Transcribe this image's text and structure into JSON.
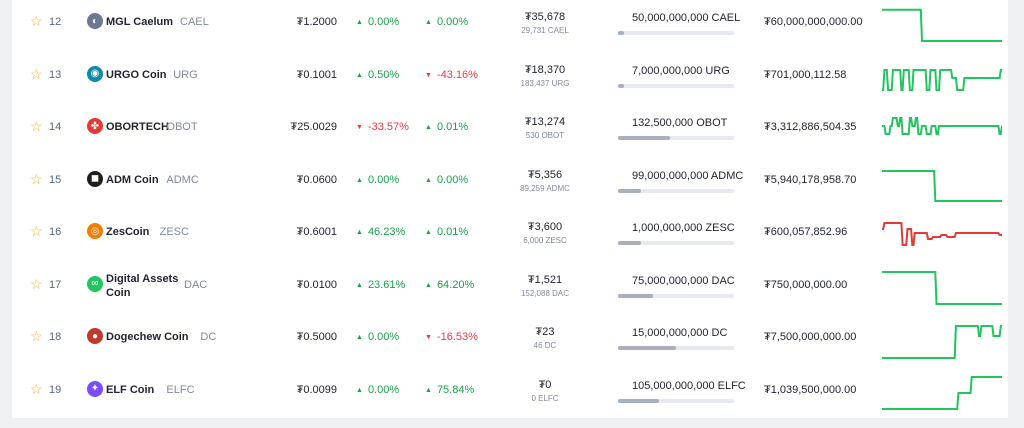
{
  "currency_symbol": "₮",
  "rows": [
    {
      "rank": "12",
      "name": "MGL Caelum",
      "symbol": "CAEL",
      "price": "₮1.2000",
      "change1": "0.00%",
      "dir1": "up",
      "change2": "0.00%",
      "dir2": "up",
      "volume": "₮35,678",
      "volume_sub": "29,731 CAEL",
      "supply": "50,000,000,000 CAEL",
      "supply_fill": 0.05,
      "market_cap": "₮60,000,000,000.00",
      "logo_icon": "mgl-caelum-logo-icon",
      "logo_color": "#6b7a8f",
      "spark_color": "#22c55e",
      "spark": [
        12,
        12,
        12,
        12,
        12,
        12,
        12,
        12,
        12,
        12,
        12,
        12,
        12,
        12,
        12,
        12,
        12,
        12,
        12,
        12,
        12,
        12,
        12,
        12,
        12,
        12,
        12,
        12,
        12,
        12,
        12,
        12,
        12,
        90,
        90,
        90,
        90,
        90,
        90,
        90,
        90,
        90,
        90,
        90,
        90,
        90,
        90,
        90,
        90,
        90,
        90,
        90,
        90,
        90,
        90,
        90,
        90,
        90,
        90,
        90,
        90,
        90,
        90,
        90,
        90,
        90,
        90,
        90,
        90,
        90,
        90,
        90,
        90,
        90,
        90,
        90,
        90,
        90,
        90,
        90,
        90,
        90,
        90,
        90,
        90,
        90,
        90,
        90,
        90,
        90,
        90,
        90,
        90,
        90,
        90,
        90,
        90,
        90,
        90,
        90
      ]
    },
    {
      "rank": "13",
      "name": "URGO Coin",
      "symbol": "URG",
      "price": "₮0.1001",
      "change1": "0.50%",
      "dir1": "up",
      "change2": "-43.16%",
      "dir2": "down",
      "volume": "₮18,370",
      "volume_sub": "183,437 URG",
      "supply": "7,000,000,000 URG",
      "supply_fill": 0.05,
      "market_cap": "₮701,000,112.58",
      "logo_icon": "urgo-coin-logo-icon",
      "logo_color": "#0d8ba8",
      "spark_color": "#22c55e",
      "spark": [
        80,
        80,
        30,
        30,
        30,
        80,
        80,
        80,
        80,
        30,
        30,
        30,
        30,
        30,
        30,
        30,
        80,
        80,
        30,
        30,
        30,
        30,
        30,
        80,
        80,
        80,
        30,
        30,
        30,
        30,
        30,
        30,
        30,
        30,
        30,
        30,
        30,
        80,
        80,
        80,
        30,
        30,
        30,
        30,
        30,
        80,
        80,
        80,
        30,
        30,
        30,
        30,
        30,
        30,
        30,
        30,
        30,
        30,
        50,
        50,
        50,
        50,
        80,
        80,
        80,
        80,
        80,
        80,
        50,
        50,
        50,
        50,
        50,
        50,
        50,
        50,
        50,
        50,
        50,
        50,
        50,
        50,
        50,
        50,
        50,
        50,
        50,
        50,
        50,
        50,
        50,
        50,
        50,
        50,
        50,
        50,
        50,
        50,
        30,
        30
      ]
    },
    {
      "rank": "14",
      "name": "OBORTECH",
      "symbol": "OBOT",
      "price": "₮25.0029",
      "change1": "-33.57%",
      "dir1": "down",
      "change2": "0.01%",
      "dir2": "up",
      "volume": "₮13,274",
      "volume_sub": "530 OBOT",
      "supply": "132,500,000 OBOT",
      "supply_fill": 0.45,
      "market_cap": "₮3,312,886,504.35",
      "logo_icon": "obortech-logo-icon",
      "logo_color": "#e53935",
      "spark_color": "#22c55e",
      "spark": [
        40,
        40,
        40,
        60,
        60,
        60,
        60,
        40,
        40,
        20,
        20,
        20,
        20,
        40,
        40,
        20,
        20,
        60,
        60,
        60,
        60,
        60,
        60,
        20,
        20,
        40,
        40,
        40,
        20,
        20,
        60,
        60,
        60,
        40,
        40,
        40,
        40,
        60,
        60,
        60,
        60,
        40,
        40,
        40,
        40,
        60,
        60,
        40,
        40,
        40,
        40,
        40,
        40,
        40,
        40,
        40,
        40,
        40,
        40,
        40,
        40,
        40,
        40,
        40,
        40,
        40,
        40,
        40,
        40,
        40,
        40,
        40,
        40,
        40,
        40,
        40,
        40,
        40,
        40,
        40,
        40,
        40,
        40,
        40,
        40,
        40,
        40,
        40,
        40,
        40,
        40,
        40,
        40,
        40,
        40,
        40,
        40,
        60,
        60,
        40
      ]
    },
    {
      "rank": "15",
      "name": "ADM Coin",
      "symbol": "ADMC",
      "price": "₮0.0600",
      "change1": "0.00%",
      "dir1": "up",
      "change2": "0.00%",
      "dir2": "up",
      "volume": "₮5,356",
      "volume_sub": "89,259 ADMC",
      "supply": "99,000,000,000 ADMC",
      "supply_fill": 0.2,
      "market_cap": "₮5,940,178,958.70",
      "logo_icon": "adm-coin-logo-icon",
      "logo_color": "#1f1f1f",
      "spark_color": "#22c55e",
      "spark": [
        20,
        20,
        20,
        20,
        20,
        20,
        20,
        20,
        20,
        20,
        20,
        20,
        20,
        20,
        20,
        20,
        20,
        20,
        20,
        20,
        20,
        20,
        20,
        20,
        20,
        20,
        20,
        20,
        20,
        20,
        20,
        20,
        20,
        20,
        20,
        20,
        20,
        20,
        20,
        20,
        20,
        20,
        20,
        20,
        95,
        95,
        95,
        95,
        95,
        95,
        95,
        95,
        95,
        95,
        95,
        95,
        95,
        95,
        95,
        95,
        95,
        95,
        95,
        95,
        95,
        95,
        95,
        95,
        95,
        95,
        95,
        95,
        95,
        95,
        95,
        95,
        95,
        95,
        95,
        95,
        95,
        95,
        95,
        95,
        95,
        95,
        95,
        95,
        95,
        95,
        95,
        95,
        95,
        95,
        95,
        95,
        95,
        95,
        95,
        95
      ]
    },
    {
      "rank": "16",
      "name": "ZesCoin",
      "symbol": "ZESC",
      "price": "₮0.6001",
      "change1": "46.23%",
      "dir1": "up",
      "change2": "0.01%",
      "dir2": "up",
      "volume": "₮3,600",
      "volume_sub": "6,000 ZESC",
      "supply": "1,000,000,000 ZESC",
      "supply_fill": 0.2,
      "market_cap": "₮600,057,852.96",
      "logo_icon": "zescoin-logo-icon",
      "logo_color": "#f57c00",
      "spark_color": "#e53935",
      "spark": [
        35,
        35,
        20,
        20,
        20,
        20,
        20,
        20,
        20,
        20,
        20,
        20,
        20,
        20,
        20,
        20,
        20,
        75,
        75,
        75,
        75,
        35,
        35,
        35,
        35,
        75,
        75,
        45,
        45,
        45,
        45,
        45,
        45,
        45,
        45,
        45,
        45,
        45,
        60,
        60,
        60,
        60,
        55,
        55,
        55,
        55,
        55,
        55,
        55,
        50,
        50,
        50,
        50,
        50,
        55,
        55,
        55,
        55,
        55,
        55,
        55,
        45,
        45,
        45,
        45,
        45,
        45,
        45,
        45,
        45,
        45,
        45,
        45,
        45,
        45,
        45,
        45,
        45,
        45,
        45,
        45,
        45,
        45,
        45,
        45,
        45,
        45,
        45,
        45,
        45,
        45,
        45,
        45,
        45,
        45,
        45,
        45,
        50,
        50,
        50
      ]
    },
    {
      "rank": "17",
      "name": "Digital Assets Coin",
      "symbol": "DAC",
      "price": "₮0.0100",
      "change1": "23.61%",
      "dir1": "up",
      "change2": "64.20%",
      "dir2": "up",
      "volume": "₮1,521",
      "volume_sub": "152,088 DAC",
      "supply": "75,000,000,000 DAC",
      "supply_fill": 0.3,
      "market_cap": "₮750,000,000.00",
      "logo_icon": "digital-assets-coin-logo-icon",
      "logo_color": "#22c55e",
      "spark_color": "#22c55e",
      "spark": [
        10,
        10,
        10,
        10,
        10,
        10,
        10,
        10,
        10,
        10,
        10,
        10,
        10,
        10,
        10,
        10,
        10,
        10,
        10,
        10,
        10,
        10,
        10,
        10,
        10,
        10,
        10,
        10,
        10,
        10,
        10,
        10,
        10,
        10,
        10,
        10,
        10,
        10,
        10,
        10,
        10,
        10,
        10,
        10,
        10,
        90,
        90,
        90,
        90,
        90,
        90,
        90,
        90,
        90,
        90,
        90,
        90,
        90,
        90,
        90,
        90,
        90,
        90,
        90,
        90,
        90,
        90,
        90,
        90,
        90,
        90,
        90,
        90,
        90,
        90,
        90,
        90,
        90,
        90,
        90,
        90,
        90,
        90,
        90,
        90,
        90,
        90,
        90,
        90,
        90,
        90,
        90,
        90,
        90,
        90,
        90,
        90,
        90,
        90,
        90
      ]
    },
    {
      "rank": "18",
      "name": "Dogechew Coin",
      "symbol": "DC",
      "price": "₮0.5000",
      "change1": "0.00%",
      "dir1": "up",
      "change2": "-16.53%",
      "dir2": "down",
      "volume": "₮23",
      "volume_sub": "46 DC",
      "supply": "15,000,000,000 DC",
      "supply_fill": 0.5,
      "market_cap": "₮7,500,000,000.00",
      "logo_icon": "dogechew-coin-logo-icon",
      "logo_color": "#c0392b",
      "spark_color": "#22c55e",
      "spark": [
        95,
        95,
        95,
        95,
        95,
        95,
        95,
        95,
        95,
        95,
        95,
        95,
        95,
        95,
        95,
        95,
        95,
        95,
        95,
        95,
        95,
        95,
        95,
        95,
        95,
        95,
        95,
        95,
        95,
        95,
        95,
        95,
        95,
        95,
        95,
        95,
        95,
        95,
        95,
        95,
        95,
        95,
        95,
        95,
        95,
        95,
        95,
        95,
        95,
        95,
        95,
        95,
        95,
        95,
        95,
        95,
        95,
        95,
        95,
        95,
        95,
        15,
        15,
        15,
        15,
        15,
        15,
        15,
        15,
        15,
        15,
        15,
        15,
        15,
        15,
        15,
        15,
        15,
        15,
        15,
        40,
        40,
        15,
        15,
        15,
        15,
        15,
        15,
        15,
        15,
        15,
        15,
        40,
        40,
        40,
        40,
        40,
        40,
        15,
        15
      ]
    },
    {
      "rank": "19",
      "name": "ELF Coin",
      "symbol": "ELFC",
      "price": "₮0.0099",
      "change1": "0.00%",
      "dir1": "up",
      "change2": "75.84%",
      "dir2": "up",
      "volume": "₮0",
      "volume_sub": "0 ELFC",
      "supply": "105,000,000,000 ELFC",
      "supply_fill": 0.35,
      "market_cap": "₮1,039,500,000.00",
      "logo_icon": "elf-coin-logo-icon",
      "logo_color": "#7c4dff",
      "spark_color": "#22c55e",
      "spark": [
        90,
        90,
        90,
        90,
        90,
        90,
        90,
        90,
        90,
        90,
        90,
        90,
        90,
        90,
        90,
        90,
        90,
        90,
        90,
        90,
        90,
        90,
        90,
        90,
        90,
        90,
        90,
        90,
        90,
        90,
        90,
        90,
        90,
        90,
        90,
        90,
        90,
        90,
        90,
        90,
        90,
        90,
        90,
        90,
        90,
        90,
        90,
        90,
        90,
        90,
        90,
        90,
        90,
        90,
        90,
        90,
        90,
        90,
        90,
        90,
        90,
        90,
        90,
        50,
        50,
        50,
        50,
        50,
        50,
        50,
        50,
        50,
        50,
        50,
        10,
        10,
        10,
        10,
        10,
        10,
        10,
        10,
        10,
        10,
        10,
        10,
        10,
        10,
        10,
        10,
        10,
        10,
        10,
        10,
        10,
        10,
        10,
        10,
        10,
        10
      ]
    }
  ]
}
